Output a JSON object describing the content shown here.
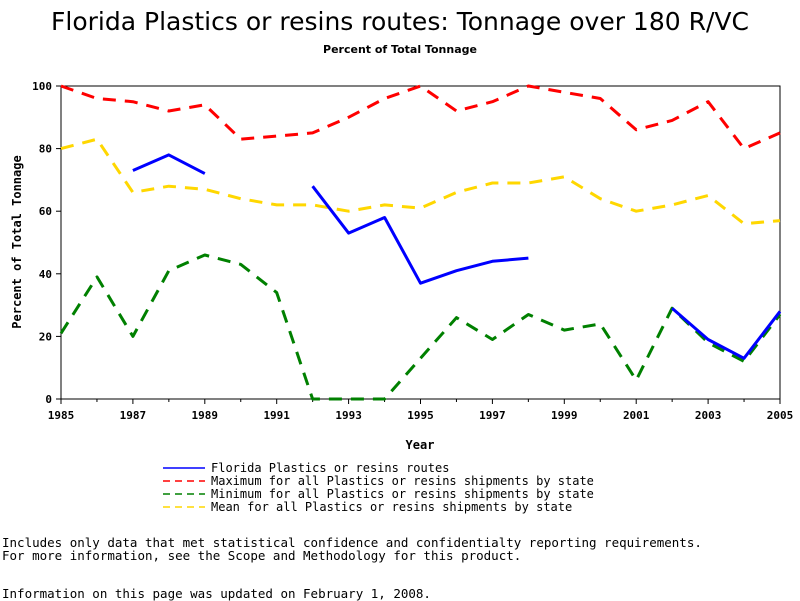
{
  "chart_data": {
    "type": "line",
    "title": "Florida Plastics or resins routes: Tonnage over 180 R/VC",
    "subtitle": "Percent of Total Tonnage",
    "xlabel": "Year",
    "ylabel": "Percent of Total Tonnage",
    "xlim": [
      1985,
      2005
    ],
    "ylim": [
      0,
      100
    ],
    "x_ticks": [
      "1985",
      "1987",
      "1989",
      "1991",
      "1993",
      "1995",
      "1997",
      "1999",
      "2001",
      "2003",
      "2005"
    ],
    "y_ticks": [
      "0",
      "20",
      "40",
      "60",
      "80",
      "100"
    ],
    "x": [
      1985,
      1986,
      1987,
      1988,
      1989,
      1990,
      1991,
      1992,
      1993,
      1994,
      1995,
      1996,
      1997,
      1998,
      1999,
      2000,
      2001,
      2002,
      2003,
      2004,
      2005
    ],
    "series": [
      {
        "name": "Florida Plastics or resins routes",
        "color": "#0000ff",
        "dash": "solid",
        "values": [
          null,
          null,
          73,
          78,
          72,
          null,
          null,
          68,
          53,
          58,
          37,
          41,
          44,
          45,
          null,
          null,
          null,
          29,
          19,
          13,
          28
        ]
      },
      {
        "name": "Maximum for all Plastics or resins shipments by state",
        "color": "#ff0000",
        "dash": "dashed",
        "values": [
          100,
          96,
          95,
          92,
          94,
          83,
          84,
          85,
          90,
          96,
          100,
          92,
          95,
          100,
          98,
          96,
          86,
          89,
          95,
          80,
          85
        ]
      },
      {
        "name": "Minimum for all Plastics or resins shipments by state",
        "color": "#008000",
        "dash": "dashed",
        "values": [
          21,
          39,
          20,
          41,
          46,
          43,
          34,
          0,
          0,
          0,
          13,
          26,
          19,
          27,
          22,
          24,
          6,
          29,
          18,
          12,
          27
        ]
      },
      {
        "name": "Mean for all Plastics or resins shipments by state",
        "color": "#ffd700",
        "dash": "dashed",
        "values": [
          80,
          83,
          66,
          68,
          67,
          64,
          62,
          62,
          60,
          62,
          61,
          66,
          69,
          69,
          71,
          64,
          60,
          62,
          65,
          56,
          57
        ]
      }
    ],
    "legend_position": "bottom"
  },
  "footnotes": {
    "line1": "Includes only data that met statistical confidence and confidentialty reporting requirements.",
    "line2": "For more information, see the Scope and Methodology for this product.",
    "line3": "Information on this page was updated on February 1, 2008."
  }
}
